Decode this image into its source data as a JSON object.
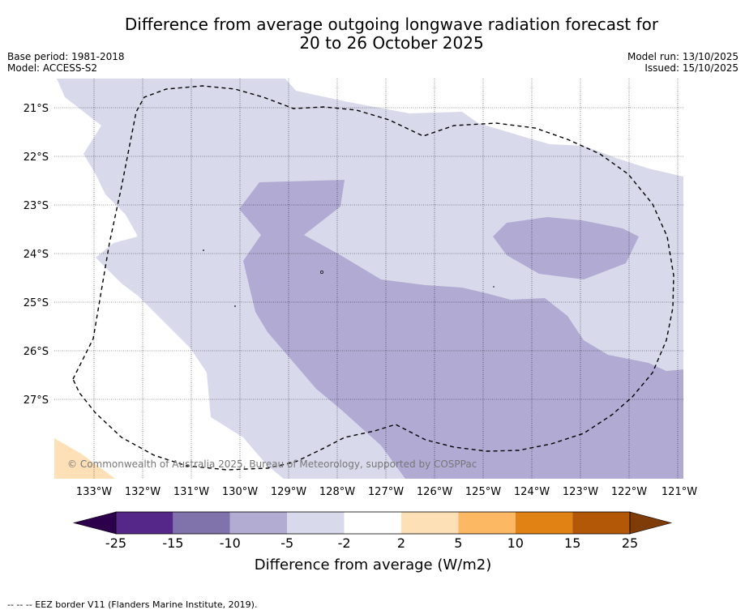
{
  "header": {
    "title_line1": "Difference from average outgoing longwave radiation forecast for",
    "title_line2": "20 to 26 October 2025",
    "base_period": "Base period: 1981-2018",
    "model": "Model: ACCESS-S2",
    "model_run": "Model run: 13/10/2025",
    "issued": "Issued: 15/10/2025"
  },
  "map": {
    "lat_labels": [
      "21°S",
      "22°S",
      "23°S",
      "24°S",
      "25°S",
      "26°S",
      "27°S"
    ],
    "lon_labels": [
      "133°W",
      "132°W",
      "131°W",
      "130°W",
      "129°W",
      "128°W",
      "127°W",
      "126°W",
      "125°W",
      "124°W",
      "123°W",
      "122°W",
      "121°W"
    ],
    "copyright": "© Commonwealth of Australia 2025, Bureau of Meteorology, supported by COSPPac"
  },
  "colorbar": {
    "label": "Difference from average (W/m2)",
    "ticks": [
      "-25",
      "-15",
      "-10",
      "-5",
      "-2",
      "2",
      "5",
      "10",
      "15",
      "25"
    ],
    "colors": [
      "#2d004b",
      "#542788",
      "#8073ac",
      "#b2abd2",
      "#d8daeb",
      "#ffffff",
      "#fee0b6",
      "#fdb863",
      "#e08214",
      "#b35806",
      "#7f3b08"
    ]
  },
  "footer": {
    "legend_text": "--  --  -- EEZ border V11 (Flanders Marine Institute, 2019)."
  }
}
